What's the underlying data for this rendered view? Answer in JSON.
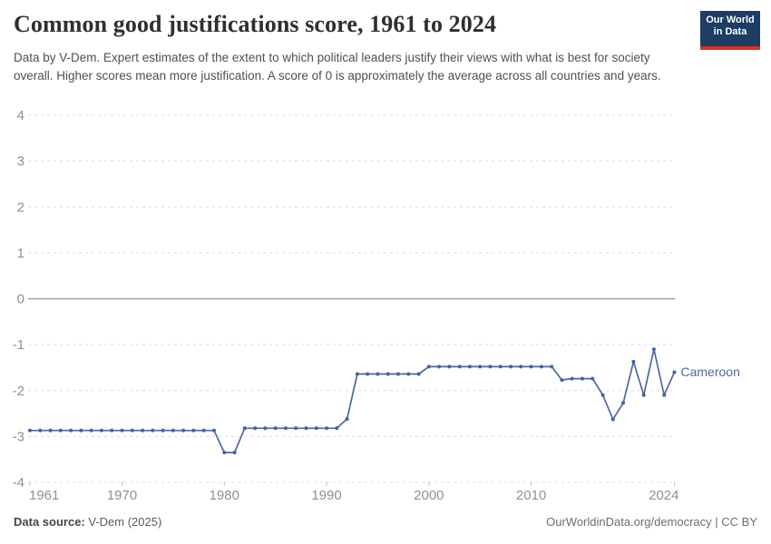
{
  "header": {
    "title": "Common good justifications score, 1961 to 2024",
    "subtitle": "Data by V-Dem. Expert estimates of the extent to which political leaders justify their views with what is best for society overall. Higher scores mean more justification. A score of 0 is approximately the average across all countries and years.",
    "logo": {
      "line1": "Our World",
      "line2": "in Data"
    }
  },
  "footer": {
    "source_label": "Data source:",
    "source_value": " V-Dem (2025)",
    "right_text": "OurWorldinData.org/democracy | CC BY"
  },
  "colors": {
    "line": "#4C6A9C",
    "marker": "#44639a",
    "grid": "#dcdcdc",
    "zero_line": "#a2a2a2",
    "axis_text": "#909090",
    "tick_mark": "#c8c8c8",
    "logo_navy": "#1d3d63",
    "logo_red": "#dc2e22"
  },
  "chart_data": {
    "type": "line",
    "title": "Common good justifications score, 1961 to 2024",
    "xlabel": "",
    "ylabel": "",
    "xlim": [
      1961,
      2024
    ],
    "ylim": [
      -4,
      4
    ],
    "yticks": [
      4,
      3,
      2,
      1,
      0,
      -1,
      -2,
      -3,
      -4
    ],
    "xticks": [
      1961,
      1970,
      1980,
      1990,
      2000,
      2010,
      2024
    ],
    "grid": "horizontal-dashed",
    "legend_position": "end-of-line-label",
    "x": [
      1961,
      1962,
      1963,
      1964,
      1965,
      1966,
      1967,
      1968,
      1969,
      1970,
      1971,
      1972,
      1973,
      1974,
      1975,
      1976,
      1977,
      1978,
      1979,
      1980,
      1981,
      1982,
      1983,
      1984,
      1985,
      1986,
      1987,
      1988,
      1989,
      1990,
      1991,
      1992,
      1993,
      1994,
      1995,
      1996,
      1997,
      1998,
      1999,
      2000,
      2001,
      2002,
      2003,
      2004,
      2005,
      2006,
      2007,
      2008,
      2009,
      2010,
      2011,
      2012,
      2013,
      2014,
      2015,
      2016,
      2017,
      2018,
      2019,
      2020,
      2021,
      2022,
      2023,
      2024
    ],
    "series": [
      {
        "name": "Cameroon",
        "values": [
          -2.87,
          -2.87,
          -2.87,
          -2.87,
          -2.87,
          -2.87,
          -2.87,
          -2.87,
          -2.87,
          -2.87,
          -2.87,
          -2.87,
          -2.87,
          -2.87,
          -2.87,
          -2.87,
          -2.87,
          -2.87,
          -2.87,
          -3.35,
          -3.35,
          -2.82,
          -2.82,
          -2.82,
          -2.82,
          -2.82,
          -2.82,
          -2.82,
          -2.82,
          -2.82,
          -2.82,
          -2.62,
          -1.64,
          -1.64,
          -1.64,
          -1.64,
          -1.64,
          -1.64,
          -1.64,
          -1.48,
          -1.48,
          -1.48,
          -1.48,
          -1.48,
          -1.48,
          -1.48,
          -1.48,
          -1.48,
          -1.48,
          -1.48,
          -1.48,
          -1.48,
          -1.77,
          -1.74,
          -1.74,
          -1.74,
          -2.1,
          -2.63,
          -2.27,
          -1.37,
          -2.1,
          -1.1,
          -2.1,
          -1.6
        ]
      }
    ]
  }
}
